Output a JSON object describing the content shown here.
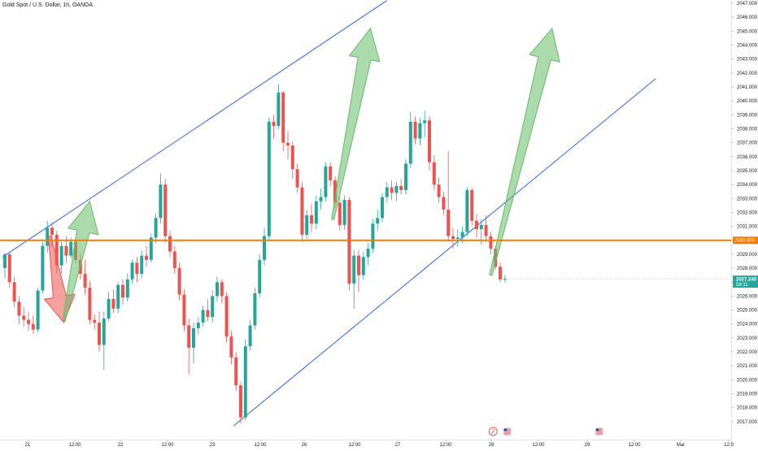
{
  "header": {
    "title": "Gold Spot / U.S. Dollar, 1h, OANDA"
  },
  "chart_data": {
    "type": "candlestick",
    "title": "Gold Spot / U.S. Dollar, 1h, OANDA",
    "ylim": [
      2016.7,
      2047.0
    ],
    "grid": false,
    "y_ticks": [
      "2047.000",
      "2046.000",
      "2045.000",
      "2044.000",
      "2043.000",
      "2042.000",
      "2041.000",
      "2040.000",
      "2039.000",
      "2038.000",
      "2037.000",
      "2036.000",
      "2035.000",
      "2034.000",
      "2033.000",
      "2032.000",
      "2031.000",
      "2030.000",
      "2029.000",
      "2028.000",
      "2027.000",
      "2026.000",
      "2025.000",
      "2024.000",
      "2023.000",
      "2022.000",
      "2021.000",
      "2020.000",
      "2019.000",
      "2018.000",
      "2017.000"
    ],
    "x_ticks": [
      "21",
      "12:00",
      "22",
      "12:00",
      "23",
      "12:00",
      "26",
      "12:00",
      "27",
      "12:00",
      "28",
      "12:00",
      "29",
      "12:00",
      "Mar",
      "12:0"
    ],
    "horizontal_level": {
      "value": 2030.0,
      "label": "2030.000",
      "color": "#f57c00"
    },
    "last_price": {
      "value": 2027.24,
      "label": "2027.240",
      "countdown": "59:11",
      "color": "#26a69a"
    },
    "colors": {
      "up": "#26a69a",
      "down": "#ef5350",
      "trendline": "#2962ff",
      "arrow_up": "#66bb6a",
      "arrow_down": "#ef5350"
    },
    "candles": [
      {
        "o": 2028.0,
        "h": 2029.1,
        "l": 2027.3,
        "c": 2029.0
      },
      {
        "o": 2029.0,
        "h": 2029.1,
        "l": 2026.6,
        "c": 2027.0
      },
      {
        "o": 2027.0,
        "h": 2027.4,
        "l": 2025.2,
        "c": 2025.6
      },
      {
        "o": 2025.6,
        "h": 2026.0,
        "l": 2024.0,
        "c": 2024.6
      },
      {
        "o": 2024.6,
        "h": 2025.2,
        "l": 2023.8,
        "c": 2024.3
      },
      {
        "o": 2024.3,
        "h": 2024.9,
        "l": 2023.5,
        "c": 2024.0
      },
      {
        "o": 2024.0,
        "h": 2024.6,
        "l": 2023.3,
        "c": 2023.6
      },
      {
        "o": 2023.6,
        "h": 2026.6,
        "l": 2023.4,
        "c": 2026.4
      },
      {
        "o": 2026.4,
        "h": 2029.9,
        "l": 2026.2,
        "c": 2029.6
      },
      {
        "o": 2029.6,
        "h": 2031.4,
        "l": 2029.1,
        "c": 2030.9
      },
      {
        "o": 2030.9,
        "h": 2031.3,
        "l": 2029.5,
        "c": 2030.4
      },
      {
        "o": 2030.4,
        "h": 2030.7,
        "l": 2027.6,
        "c": 2028.2
      },
      {
        "o": 2028.2,
        "h": 2029.9,
        "l": 2027.6,
        "c": 2029.6
      },
      {
        "o": 2029.6,
        "h": 2030.3,
        "l": 2028.4,
        "c": 2028.9
      },
      {
        "o": 2028.9,
        "h": 2030.2,
        "l": 2028.7,
        "c": 2029.9
      },
      {
        "o": 2029.9,
        "h": 2030.3,
        "l": 2028.4,
        "c": 2028.6
      },
      {
        "o": 2028.6,
        "h": 2029.1,
        "l": 2027.2,
        "c": 2027.6
      },
      {
        "o": 2027.6,
        "h": 2028.6,
        "l": 2026.1,
        "c": 2026.6
      },
      {
        "o": 2026.6,
        "h": 2027.1,
        "l": 2024.0,
        "c": 2024.3
      },
      {
        "o": 2024.3,
        "h": 2024.7,
        "l": 2023.6,
        "c": 2024.1
      },
      {
        "o": 2024.1,
        "h": 2024.9,
        "l": 2022.0,
        "c": 2022.5
      },
      {
        "o": 2022.5,
        "h": 2024.9,
        "l": 2020.7,
        "c": 2024.4
      },
      {
        "o": 2024.4,
        "h": 2026.3,
        "l": 2024.2,
        "c": 2025.8
      },
      {
        "o": 2025.8,
        "h": 2026.5,
        "l": 2024.8,
        "c": 2025.1
      },
      {
        "o": 2025.1,
        "h": 2027.0,
        "l": 2024.8,
        "c": 2026.8
      },
      {
        "o": 2026.8,
        "h": 2027.2,
        "l": 2025.4,
        "c": 2025.9
      },
      {
        "o": 2025.9,
        "h": 2027.6,
        "l": 2025.6,
        "c": 2027.2
      },
      {
        "o": 2027.2,
        "h": 2028.6,
        "l": 2026.9,
        "c": 2028.4
      },
      {
        "o": 2028.4,
        "h": 2028.8,
        "l": 2027.0,
        "c": 2027.6
      },
      {
        "o": 2027.6,
        "h": 2029.3,
        "l": 2027.3,
        "c": 2028.9
      },
      {
        "o": 2028.9,
        "h": 2029.6,
        "l": 2028.1,
        "c": 2028.6
      },
      {
        "o": 2028.6,
        "h": 2030.5,
        "l": 2028.4,
        "c": 2030.2
      },
      {
        "o": 2030.2,
        "h": 2031.9,
        "l": 2029.8,
        "c": 2031.6
      },
      {
        "o": 2031.6,
        "h": 2034.8,
        "l": 2031.2,
        "c": 2034.0
      },
      {
        "o": 2034.0,
        "h": 2034.4,
        "l": 2029.8,
        "c": 2030.3
      },
      {
        "o": 2030.3,
        "h": 2030.7,
        "l": 2028.8,
        "c": 2029.2
      },
      {
        "o": 2029.2,
        "h": 2029.6,
        "l": 2027.6,
        "c": 2028.0
      },
      {
        "o": 2028.0,
        "h": 2028.4,
        "l": 2025.7,
        "c": 2026.1
      },
      {
        "o": 2026.1,
        "h": 2026.5,
        "l": 2023.5,
        "c": 2023.9
      },
      {
        "o": 2023.9,
        "h": 2024.4,
        "l": 2020.4,
        "c": 2022.3
      },
      {
        "o": 2022.3,
        "h": 2024.1,
        "l": 2021.2,
        "c": 2023.7
      },
      {
        "o": 2023.7,
        "h": 2024.5,
        "l": 2023.2,
        "c": 2024.1
      },
      {
        "o": 2024.1,
        "h": 2025.3,
        "l": 2023.8,
        "c": 2025.0
      },
      {
        "o": 2025.0,
        "h": 2025.8,
        "l": 2024.2,
        "c": 2024.5
      },
      {
        "o": 2024.5,
        "h": 2026.4,
        "l": 2024.1,
        "c": 2026.0
      },
      {
        "o": 2026.0,
        "h": 2027.4,
        "l": 2025.6,
        "c": 2027.0
      },
      {
        "o": 2027.0,
        "h": 2027.2,
        "l": 2025.5,
        "c": 2026.0
      },
      {
        "o": 2026.0,
        "h": 2026.3,
        "l": 2022.7,
        "c": 2023.1
      },
      {
        "o": 2023.1,
        "h": 2023.5,
        "l": 2021.1,
        "c": 2021.6
      },
      {
        "o": 2021.6,
        "h": 2022.0,
        "l": 2019.2,
        "c": 2019.6
      },
      {
        "o": 2019.6,
        "h": 2019.9,
        "l": 2016.9,
        "c": 2017.3
      },
      {
        "o": 2017.3,
        "h": 2022.9,
        "l": 2017.1,
        "c": 2022.4
      },
      {
        "o": 2022.4,
        "h": 2024.3,
        "l": 2022.1,
        "c": 2023.9
      },
      {
        "o": 2023.9,
        "h": 2026.6,
        "l": 2023.6,
        "c": 2026.2
      },
      {
        "o": 2026.2,
        "h": 2029.0,
        "l": 2025.9,
        "c": 2028.6
      },
      {
        "o": 2028.6,
        "h": 2030.9,
        "l": 2028.2,
        "c": 2030.3
      },
      {
        "o": 2030.3,
        "h": 2038.8,
        "l": 2030.0,
        "c": 2038.5
      },
      {
        "o": 2038.5,
        "h": 2039.0,
        "l": 2037.3,
        "c": 2038.2
      },
      {
        "o": 2038.2,
        "h": 2041.2,
        "l": 2038.0,
        "c": 2040.6
      },
      {
        "o": 2040.6,
        "h": 2040.7,
        "l": 2036.4,
        "c": 2037.0
      },
      {
        "o": 2037.0,
        "h": 2037.8,
        "l": 2035.8,
        "c": 2036.8
      },
      {
        "o": 2036.8,
        "h": 2037.1,
        "l": 2034.4,
        "c": 2035.1
      },
      {
        "o": 2035.1,
        "h": 2035.5,
        "l": 2033.4,
        "c": 2033.8
      },
      {
        "o": 2033.8,
        "h": 2034.2,
        "l": 2029.9,
        "c": 2030.4
      },
      {
        "o": 2030.4,
        "h": 2032.2,
        "l": 2030.1,
        "c": 2031.8
      },
      {
        "o": 2031.8,
        "h": 2032.6,
        "l": 2030.6,
        "c": 2031.2
      },
      {
        "o": 2031.2,
        "h": 2033.2,
        "l": 2030.8,
        "c": 2032.8
      },
      {
        "o": 2032.8,
        "h": 2033.7,
        "l": 2032.2,
        "c": 2033.1
      },
      {
        "o": 2033.1,
        "h": 2035.6,
        "l": 2032.8,
        "c": 2035.3
      },
      {
        "o": 2035.3,
        "h": 2035.6,
        "l": 2033.9,
        "c": 2034.3
      },
      {
        "o": 2034.3,
        "h": 2034.6,
        "l": 2032.3,
        "c": 2032.7
      },
      {
        "o": 2032.7,
        "h": 2033.1,
        "l": 2030.7,
        "c": 2031.1
      },
      {
        "o": 2031.1,
        "h": 2033.2,
        "l": 2030.8,
        "c": 2032.9
      },
      {
        "o": 2032.9,
        "h": 2033.1,
        "l": 2026.4,
        "c": 2026.9
      },
      {
        "o": 2026.9,
        "h": 2029.3,
        "l": 2025.1,
        "c": 2028.9
      },
      {
        "o": 2028.9,
        "h": 2029.3,
        "l": 2026.3,
        "c": 2027.5
      },
      {
        "o": 2027.5,
        "h": 2029.2,
        "l": 2027.2,
        "c": 2028.8
      },
      {
        "o": 2028.8,
        "h": 2029.8,
        "l": 2028.2,
        "c": 2029.4
      },
      {
        "o": 2029.4,
        "h": 2031.5,
        "l": 2029.1,
        "c": 2031.2
      },
      {
        "o": 2031.2,
        "h": 2032.2,
        "l": 2030.7,
        "c": 2031.6
      },
      {
        "o": 2031.6,
        "h": 2033.4,
        "l": 2031.3,
        "c": 2033.1
      },
      {
        "o": 2033.1,
        "h": 2034.2,
        "l": 2032.7,
        "c": 2033.8
      },
      {
        "o": 2033.8,
        "h": 2034.3,
        "l": 2032.9,
        "c": 2033.4
      },
      {
        "o": 2033.4,
        "h": 2034.2,
        "l": 2032.8,
        "c": 2033.9
      },
      {
        "o": 2033.9,
        "h": 2034.4,
        "l": 2033.3,
        "c": 2033.6
      },
      {
        "o": 2033.6,
        "h": 2035.8,
        "l": 2033.3,
        "c": 2035.5
      },
      {
        "o": 2035.5,
        "h": 2039.2,
        "l": 2035.2,
        "c": 2038.5
      },
      {
        "o": 2038.5,
        "h": 2038.9,
        "l": 2036.9,
        "c": 2037.3
      },
      {
        "o": 2037.3,
        "h": 2038.8,
        "l": 2036.8,
        "c": 2038.4
      },
      {
        "o": 2038.4,
        "h": 2039.3,
        "l": 2037.4,
        "c": 2038.6
      },
      {
        "o": 2038.6,
        "h": 2038.9,
        "l": 2035.0,
        "c": 2035.6
      },
      {
        "o": 2035.6,
        "h": 2036.1,
        "l": 2033.6,
        "c": 2034.0
      },
      {
        "o": 2034.0,
        "h": 2034.5,
        "l": 2032.7,
        "c": 2033.1
      },
      {
        "o": 2033.1,
        "h": 2033.5,
        "l": 2031.8,
        "c": 2032.2
      },
      {
        "o": 2032.2,
        "h": 2036.4,
        "l": 2029.9,
        "c": 2030.3
      },
      {
        "o": 2030.3,
        "h": 2030.9,
        "l": 2029.4,
        "c": 2030.1
      },
      {
        "o": 2030.1,
        "h": 2030.8,
        "l": 2029.5,
        "c": 2030.2
      },
      {
        "o": 2030.2,
        "h": 2031.0,
        "l": 2029.8,
        "c": 2030.6
      },
      {
        "o": 2030.6,
        "h": 2033.8,
        "l": 2030.3,
        "c": 2033.6
      },
      {
        "o": 2033.6,
        "h": 2033.8,
        "l": 2031.0,
        "c": 2031.4
      },
      {
        "o": 2031.4,
        "h": 2031.9,
        "l": 2030.2,
        "c": 2030.8
      },
      {
        "o": 2030.8,
        "h": 2031.5,
        "l": 2029.7,
        "c": 2031.1
      },
      {
        "o": 2031.1,
        "h": 2031.8,
        "l": 2029.9,
        "c": 2030.3
      },
      {
        "o": 2030.3,
        "h": 2030.6,
        "l": 2029.0,
        "c": 2029.4
      },
      {
        "o": 2029.4,
        "h": 2029.6,
        "l": 2027.9,
        "c": 2028.1
      },
      {
        "o": 2028.1,
        "h": 2028.4,
        "l": 2027.0,
        "c": 2027.2
      },
      {
        "o": 2027.2,
        "h": 2027.5,
        "l": 2027.0,
        "c": 2027.24
      }
    ],
    "trendlines": [
      {
        "name": "upper-channel-line",
        "from": {
          "bar": -0.5,
          "y": 2028.8
        },
        "to": {
          "bar": 81.0,
          "y": 2047.2
        }
      },
      {
        "name": "lower-channel-line",
        "from": {
          "bar": 48.5,
          "y": 2016.7
        },
        "to": {
          "bar": 138.0,
          "y": 2041.6
        }
      }
    ],
    "arrows": [
      {
        "name": "red-down-arrow",
        "direction": "down",
        "from": {
          "bar": 9.5,
          "y": 2030.3
        },
        "to": {
          "bar": 12.5,
          "y": 2024.1
        }
      },
      {
        "name": "green-up-arrow-left",
        "direction": "up",
        "from": {
          "bar": 12.5,
          "y": 2024.2
        },
        "to": {
          "bar": 18.0,
          "y": 2032.8
        }
      },
      {
        "name": "green-up-arrow-middle",
        "direction": "up",
        "from": {
          "bar": 69.5,
          "y": 2031.5
        },
        "to": {
          "bar": 77.5,
          "y": 2045.2
        }
      },
      {
        "name": "green-up-arrow-right",
        "direction": "up",
        "from": {
          "bar": 103.0,
          "y": 2027.5
        },
        "to": {
          "bar": 116.0,
          "y": 2045.2
        }
      }
    ],
    "event_icons": [
      {
        "name": "event-flag-icon",
        "bar": 103.5
      },
      {
        "name": "us-flag-icon",
        "bar": 106.5
      },
      {
        "name": "us-flag-icon",
        "bar": 126.0
      }
    ]
  }
}
